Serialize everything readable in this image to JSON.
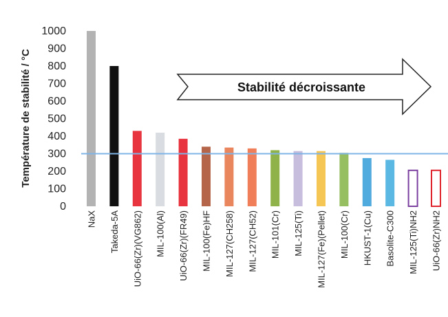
{
  "chart_data": {
    "type": "bar",
    "title": "",
    "xlabel": "",
    "ylabel": "Température de stabilité / °C",
    "ylim": [
      0,
      1000
    ],
    "yticks": [
      0,
      100,
      200,
      300,
      400,
      500,
      600,
      700,
      800,
      900,
      1000
    ],
    "grid": false,
    "categories": [
      "NaX",
      "Takeda-5A",
      "UiO-66(Zr)(VG862)",
      "MIL-100(Al)",
      "UiO-66(Zr)(FR49)",
      "MIL-100(Fe)HF",
      "MIL-127(CH258)",
      "MIL-127(CH52)",
      "MIL-101(Cr)",
      "MIL-125(Ti)",
      "MIL-127(Fe)(Pellet)",
      "MIL-100(Cr)",
      "HKUST-1(Cu)",
      "Basolite-C300",
      "MIL-125(Ti)NH2",
      "UiO-66(Zr)NH2"
    ],
    "values": [
      1000,
      800,
      430,
      420,
      385,
      340,
      335,
      330,
      320,
      315,
      315,
      305,
      275,
      265,
      205,
      205
    ],
    "bar_colors": [
      "#b3b3b3",
      "#111111",
      "#e8343f",
      "#d9dde2",
      "#e8343f",
      "#b5654a",
      "#e9865e",
      "#f07f59",
      "#8fb34a",
      "#c7bddc",
      "#f6c655",
      "#95bf60",
      "#4faadd",
      "#5ab8e3",
      "#7b3fa0",
      "#e0242e"
    ],
    "bar_styles": [
      "solid",
      "solid",
      "solid",
      "solid",
      "solid",
      "solid",
      "solid",
      "solid",
      "solid",
      "solid",
      "solid",
      "solid",
      "solid",
      "solid",
      "outline",
      "outline"
    ],
    "reference_line": {
      "value": 300,
      "color": "#7fb4e6"
    },
    "annotations": [
      {
        "type": "arrow",
        "text": "Stabilité décroissante"
      }
    ]
  }
}
